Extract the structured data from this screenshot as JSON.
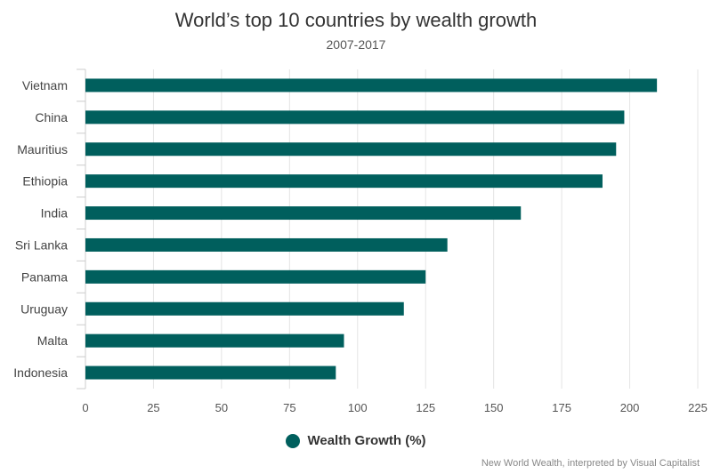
{
  "chart_data": {
    "type": "bar",
    "orientation": "horizontal",
    "title": "World’s top 10 countries by wealth growth",
    "subtitle": "2007-2017",
    "categories": [
      "Vietnam",
      "China",
      "Mauritius",
      "Ethiopia",
      "India",
      "Sri Lanka",
      "Panama",
      "Uruguay",
      "Malta",
      "Indonesia"
    ],
    "series": [
      {
        "name": "Wealth Growth (%)",
        "values": [
          210,
          198,
          195,
          190,
          160,
          133,
          125,
          117,
          95,
          92
        ]
      }
    ],
    "xlim": [
      0,
      225
    ],
    "xticks": [
      0,
      25,
      50,
      75,
      100,
      125,
      150,
      175,
      200,
      225
    ],
    "xlabel": "",
    "ylabel": "",
    "grid": true,
    "legend_position": "bottom",
    "bar_color": "#005f5d",
    "source": "New World Wealth, interpreted by Visual Capitalist"
  }
}
